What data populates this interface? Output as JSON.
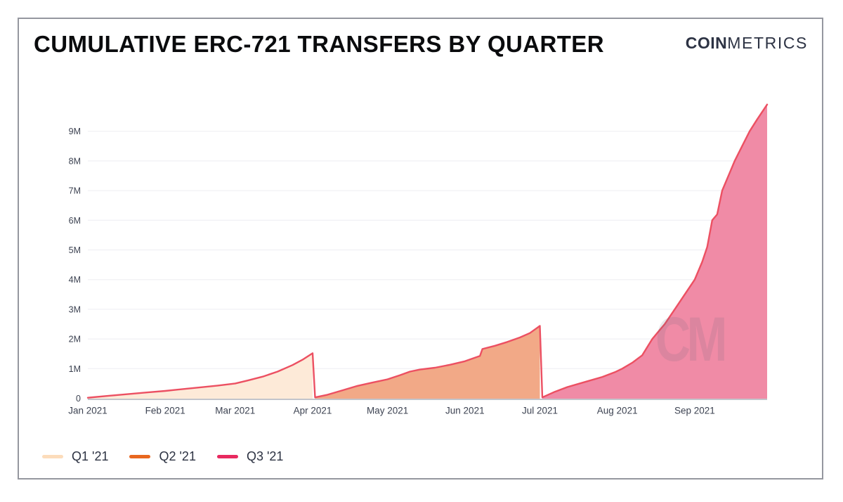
{
  "window": {
    "background": "#ffffff",
    "border_color": "#95979f"
  },
  "header": {
    "title": "CUMULATIVE ERC-721 TRANSFERS BY QUARTER",
    "brand": {
      "bold": "COIN",
      "light": "METRICS"
    }
  },
  "chart_data": {
    "type": "area",
    "title": "CUMULATIVE ERC-721 TRANSFERS BY QUARTER",
    "x_unit": "day of 2021 (Jan 1 = 0)",
    "y_unit": "cumulative ERC-721 transfers, millions",
    "ylim": [
      0,
      10
    ],
    "grid": true,
    "legend_position": "bottom-left",
    "line_color": "#ec5062",
    "axis_color": "#c2c4cb",
    "grid_color": "#eeeef2",
    "tick_color": "#3d4352",
    "y_ticks": [
      {
        "label": "0",
        "value": 0
      },
      {
        "label": "1M",
        "value": 1
      },
      {
        "label": "2M",
        "value": 2
      },
      {
        "label": "3M",
        "value": 3
      },
      {
        "label": "4M",
        "value": 4
      },
      {
        "label": "5M",
        "value": 5
      },
      {
        "label": "6M",
        "value": 6
      },
      {
        "label": "7M",
        "value": 7
      },
      {
        "label": "8M",
        "value": 8
      },
      {
        "label": "9M",
        "value": 9
      }
    ],
    "x_ticks": [
      {
        "label": "Jan 2021",
        "day": 0
      },
      {
        "label": "Feb 2021",
        "day": 31
      },
      {
        "label": "Mar 2021",
        "day": 59
      },
      {
        "label": "Apr 2021",
        "day": 90
      },
      {
        "label": "May 2021",
        "day": 120
      },
      {
        "label": "Jun 2021",
        "day": 151
      },
      {
        "label": "Jul 2021",
        "day": 181
      },
      {
        "label": "Aug 2021",
        "day": 212
      },
      {
        "label": "Sep 2021",
        "day": 243
      }
    ],
    "x_range_days": [
      0,
      272
    ],
    "series": [
      {
        "name": "Q1 '21",
        "legend_color": "#fcdcbb",
        "fill_color": "#fdead8",
        "points": [
          [
            0,
            0.02
          ],
          [
            8,
            0.08
          ],
          [
            16,
            0.14
          ],
          [
            24,
            0.2
          ],
          [
            31,
            0.25
          ],
          [
            38,
            0.31
          ],
          [
            44,
            0.36
          ],
          [
            52,
            0.43
          ],
          [
            59,
            0.5
          ],
          [
            64,
            0.6
          ],
          [
            70,
            0.73
          ],
          [
            76,
            0.9
          ],
          [
            82,
            1.12
          ],
          [
            86,
            1.3
          ],
          [
            90,
            1.52
          ]
        ]
      },
      {
        "name": "Q2 '21",
        "legend_color": "#e8671f",
        "fill_color": "#f2a987",
        "points": [
          [
            91,
            0.03
          ],
          [
            96,
            0.12
          ],
          [
            102,
            0.27
          ],
          [
            108,
            0.42
          ],
          [
            114,
            0.53
          ],
          [
            120,
            0.64
          ],
          [
            125,
            0.78
          ],
          [
            129,
            0.9
          ],
          [
            133,
            0.97
          ],
          [
            139,
            1.03
          ],
          [
            145,
            1.13
          ],
          [
            151,
            1.25
          ],
          [
            157,
            1.43
          ],
          [
            158,
            1.66
          ],
          [
            163,
            1.77
          ],
          [
            168,
            1.9
          ],
          [
            173,
            2.05
          ],
          [
            177,
            2.2
          ],
          [
            181,
            2.44
          ]
        ]
      },
      {
        "name": "Q3 '21",
        "legend_color": "#e8295f",
        "fill_color": "#f08ba6",
        "points": [
          [
            182,
            0.03
          ],
          [
            187,
            0.22
          ],
          [
            192,
            0.38
          ],
          [
            199,
            0.55
          ],
          [
            206,
            0.72
          ],
          [
            211,
            0.88
          ],
          [
            214,
            1.0
          ],
          [
            218,
            1.2
          ],
          [
            222,
            1.45
          ],
          [
            226,
            2.0
          ],
          [
            229,
            2.3
          ],
          [
            231,
            2.5
          ],
          [
            235,
            3.0
          ],
          [
            239,
            3.5
          ],
          [
            243,
            4.0
          ],
          [
            246,
            4.6
          ],
          [
            248,
            5.1
          ],
          [
            250,
            6.0
          ],
          [
            252,
            6.2
          ],
          [
            254,
            7.0
          ],
          [
            257,
            7.6
          ],
          [
            259,
            8.0
          ],
          [
            262,
            8.5
          ],
          [
            265,
            9.0
          ],
          [
            268,
            9.4
          ],
          [
            272,
            9.9
          ]
        ]
      }
    ],
    "watermark": "CM"
  }
}
